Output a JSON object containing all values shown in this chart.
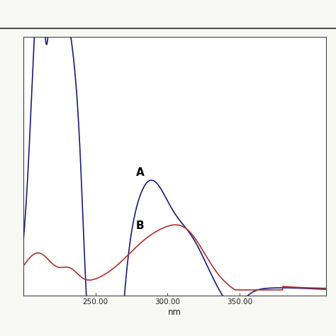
{
  "title": "",
  "xlabel": "nm",
  "ylabel": "",
  "xlim": [
    200,
    410
  ],
  "ylim": [
    -0.02,
    1.1
  ],
  "line_A_color": "#1c1c7a",
  "line_B_color": "#b03030",
  "label_A": "A",
  "label_B": "B",
  "background_color": "#f8f8f5",
  "plot_bg_color": "#ffffff"
}
